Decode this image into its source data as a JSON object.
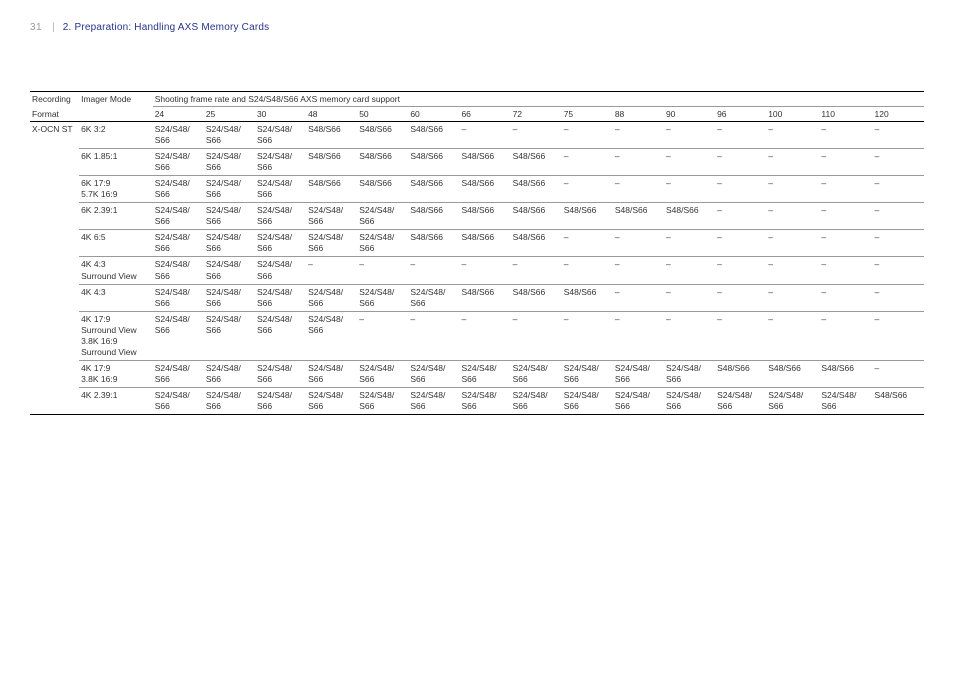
{
  "header": {
    "page_number": "31",
    "chapter": "2. Preparation: Handling AXS Memory Cards"
  },
  "table": {
    "col_headers_row1": {
      "recording": "Recording",
      "imager": "Imager Mode",
      "shooting": "Shooting frame rate and S24/S48/S66 AXS memory card support"
    },
    "col_headers_row2": {
      "recording": "Format",
      "rates": [
        "24",
        "25",
        "30",
        "48",
        "50",
        "60",
        "66",
        "72",
        "75",
        "88",
        "90",
        "96",
        "100",
        "110",
        "120"
      ]
    },
    "recording_format": "X-OCN ST",
    "rows": [
      {
        "imager_lines": [
          "6K 3:2"
        ],
        "cells": [
          "S24/S48/\nS66",
          "S24/S48/\nS66",
          "S24/S48/\nS66",
          "S48/S66",
          "S48/S66",
          "S48/S66",
          "–",
          "–",
          "–",
          "–",
          "–",
          "–",
          "–",
          "–",
          "–"
        ]
      },
      {
        "imager_lines": [
          "6K 1.85:1"
        ],
        "cells": [
          "S24/S48/\nS66",
          "S24/S48/\nS66",
          "S24/S48/\nS66",
          "S48/S66",
          "S48/S66",
          "S48/S66",
          "S48/S66",
          "S48/S66",
          "–",
          "–",
          "–",
          "–",
          "–",
          "–",
          "–"
        ]
      },
      {
        "imager_lines": [
          "6K 17:9",
          "5.7K 16:9"
        ],
        "cells": [
          "S24/S48/\nS66",
          "S24/S48/\nS66",
          "S24/S48/\nS66",
          "S48/S66",
          "S48/S66",
          "S48/S66",
          "S48/S66",
          "S48/S66",
          "–",
          "–",
          "–",
          "–",
          "–",
          "–",
          "–"
        ]
      },
      {
        "imager_lines": [
          "6K 2.39:1"
        ],
        "cells": [
          "S24/S48/\nS66",
          "S24/S48/\nS66",
          "S24/S48/\nS66",
          "S24/S48/\nS66",
          "S24/S48/\nS66",
          "S48/S66",
          "S48/S66",
          "S48/S66",
          "S48/S66",
          "S48/S66",
          "S48/S66",
          "–",
          "–",
          "–",
          "–"
        ]
      },
      {
        "imager_lines": [
          "4K 6:5"
        ],
        "cells": [
          "S24/S48/\nS66",
          "S24/S48/\nS66",
          "S24/S48/\nS66",
          "S24/S48/\nS66",
          "S24/S48/\nS66",
          "S48/S66",
          "S48/S66",
          "S48/S66",
          "–",
          "–",
          "–",
          "–",
          "–",
          "–",
          "–"
        ]
      },
      {
        "imager_lines": [
          "4K 4:3",
          "Surround View"
        ],
        "cells": [
          "S24/S48/\nS66",
          "S24/S48/\nS66",
          "S24/S48/\nS66",
          "–",
          "–",
          "–",
          "–",
          "–",
          "–",
          "–",
          "–",
          "–",
          "–",
          "–",
          "–"
        ]
      },
      {
        "imager_lines": [
          "4K 4:3"
        ],
        "cells": [
          "S24/S48/\nS66",
          "S24/S48/\nS66",
          "S24/S48/\nS66",
          "S24/S48/\nS66",
          "S24/S48/\nS66",
          "S24/S48/\nS66",
          "S48/S66",
          "S48/S66",
          "S48/S66",
          "–",
          "–",
          "–",
          "–",
          "–",
          "–"
        ]
      },
      {
        "imager_lines": [
          "4K 17:9",
          "Surround View",
          "3.8K 16:9",
          "Surround View"
        ],
        "cells": [
          "S24/S48/\nS66",
          "S24/S48/\nS66",
          "S24/S48/\nS66",
          "S24/S48/\nS66",
          "–",
          "–",
          "–",
          "–",
          "–",
          "–",
          "–",
          "–",
          "–",
          "–",
          "–"
        ]
      },
      {
        "imager_lines": [
          "4K 17:9",
          "3.8K 16:9"
        ],
        "cells": [
          "S24/S48/\nS66",
          "S24/S48/\nS66",
          "S24/S48/\nS66",
          "S24/S48/\nS66",
          "S24/S48/\nS66",
          "S24/S48/\nS66",
          "S24/S48/\nS66",
          "S24/S48/\nS66",
          "S24/S48/\nS66",
          "S24/S48/\nS66",
          "S24/S48/\nS66",
          "S48/S66",
          "S48/S66",
          "S48/S66",
          "–"
        ]
      },
      {
        "imager_lines": [
          "4K 2.39:1"
        ],
        "cells": [
          "S24/S48/\nS66",
          "S24/S48/\nS66",
          "S24/S48/\nS66",
          "S24/S48/\nS66",
          "S24/S48/\nS66",
          "S24/S48/\nS66",
          "S24/S48/\nS66",
          "S24/S48/\nS66",
          "S24/S48/\nS66",
          "S24/S48/\nS66",
          "S24/S48/\nS66",
          "S24/S48/\nS66",
          "S24/S48/\nS66",
          "S24/S48/\nS66",
          "S48/S66"
        ]
      }
    ]
  }
}
